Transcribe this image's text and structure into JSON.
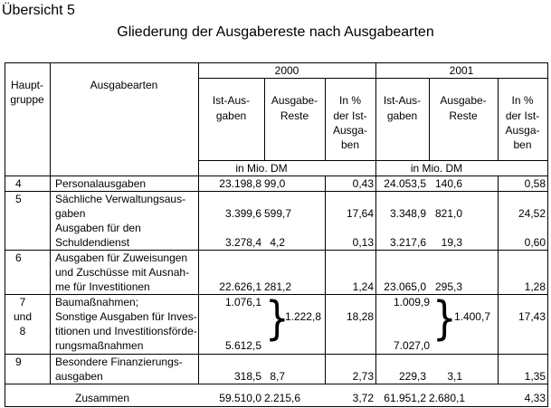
{
  "heading": "Übersicht 5",
  "title": "Gliederung der Ausgabereste nach Ausgabearten",
  "header": {
    "hauptgruppe": [
      "Haupt-",
      "gruppe"
    ],
    "ausgabearten": "Ausgabearten",
    "year1": "2000",
    "year2": "2001",
    "ist": [
      "Ist-Aus-",
      "gaben"
    ],
    "reste": [
      "Ausgabe-",
      "Reste"
    ],
    "pct": [
      "In %",
      "der Ist-",
      "Ausga-",
      "ben"
    ],
    "unit": "in Mio. DM"
  },
  "rows": [
    {
      "group": "4",
      "label": "Personalausgaben",
      "ist2000": "23.198,8",
      "reste2000": "99,0",
      "pct2000": "0,43",
      "ist2001": "24.053,5",
      "reste2001": "140,6",
      "pct2001": "0,58"
    },
    {
      "group": "5",
      "label_lines": [
        "Sächliche Verwaltungsaus-",
        "gaben"
      ],
      "ist2000": "3.399,6",
      "reste2000": "599,7",
      "pct2000": "17,64",
      "ist2001": "3.348,9",
      "reste2001": "821,0",
      "pct2001": "24,52"
    },
    {
      "label_lines": [
        "Ausgaben für den",
        "Schuldendienst"
      ],
      "ist2000": "3.278,4",
      "reste2000": "4,2",
      "pct2000": "0,13",
      "ist2001": "3.217,6",
      "reste2001": "19,3",
      "pct2001": "0,60"
    },
    {
      "group": "6",
      "label_lines": [
        "Ausgaben für Zuweisungen",
        "und Zuschüsse mit Ausnah-",
        "me für Investitionen"
      ],
      "ist2000": "22.626,1",
      "reste2000": "281,2",
      "pct2000": "1,24",
      "ist2001": "23.065,0",
      "reste2001": "295,3",
      "pct2001": "1,28"
    },
    {
      "group_lines": [
        "7",
        "und",
        "8"
      ],
      "label_lines": [
        "Baumaßnahmen;",
        "Sonstige Ausgaben für Inves-",
        "titionen und Investitionsförde-",
        "rungsmaßnahmen"
      ],
      "ist2000_a": "1.076,1",
      "ist2000_b": "5.612,5",
      "reste2000": "1.222,8",
      "pct2000": "18,28",
      "ist2001_a": "1.009,9",
      "ist2001_b": "7.027,0",
      "reste2001": "1.400,7",
      "pct2001": "17,43"
    },
    {
      "group": "9",
      "label_lines": [
        "Besondere Finanzierungs-",
        "ausgaben"
      ],
      "ist2000": "318,5",
      "reste2000": "8,7",
      "pct2000": "2,73",
      "ist2001": "229,3",
      "reste2001": "3,1",
      "pct2001": "1,35"
    }
  ],
  "total": {
    "label": "Zusammen",
    "ist2000": "59.510,0",
    "reste2000": "2.215,6",
    "pct2000": "3,72",
    "ist2001": "61.951,2",
    "reste2001": "2.680,1",
    "pct2001": "4,33"
  }
}
